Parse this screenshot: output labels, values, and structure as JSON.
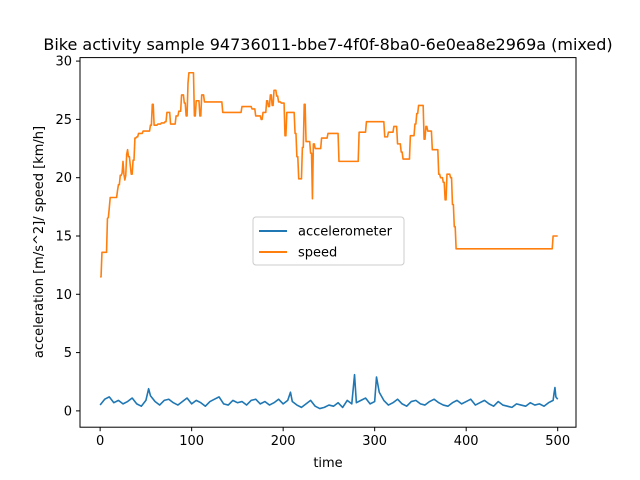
{
  "chart_data": {
    "type": "line",
    "title": "Bike activity sample 94736011-bbe7-4f0f-8ba0-6e0ea8e2969a (mixed)",
    "xlabel": "time",
    "ylabel": "acceleration [m/s^2]/ speed [km/h]",
    "xlim": [
      -22,
      520
    ],
    "ylim": [
      -1.4,
      30.3
    ],
    "xticks": [
      0,
      100,
      200,
      300,
      400,
      500
    ],
    "yticks": [
      0,
      5,
      10,
      15,
      20,
      25,
      30
    ],
    "grid": false,
    "legend_position": "center",
    "series": [
      {
        "name": "accelerometer",
        "color": "#1f77b4",
        "x": [
          0,
          5,
          10,
          15,
          20,
          25,
          30,
          35,
          40,
          45,
          50,
          53,
          55,
          60,
          65,
          70,
          75,
          80,
          85,
          90,
          95,
          100,
          105,
          110,
          115,
          120,
          125,
          130,
          135,
          140,
          145,
          150,
          155,
          160,
          165,
          170,
          175,
          180,
          185,
          190,
          195,
          200,
          205,
          208,
          210,
          215,
          220,
          225,
          230,
          235,
          240,
          245,
          250,
          255,
          260,
          265,
          270,
          275,
          278,
          280,
          285,
          290,
          295,
          300,
          302,
          305,
          310,
          315,
          320,
          325,
          330,
          335,
          340,
          345,
          350,
          355,
          360,
          365,
          370,
          375,
          380,
          385,
          390,
          395,
          400,
          405,
          410,
          415,
          420,
          425,
          430,
          435,
          440,
          445,
          450,
          455,
          460,
          465,
          470,
          475,
          480,
          485,
          490,
          495,
          496,
          497,
          498,
          500
        ],
        "y": [
          0.5,
          1.0,
          1.2,
          0.7,
          0.9,
          0.6,
          0.8,
          1.1,
          0.6,
          0.4,
          0.9,
          1.9,
          1.3,
          0.8,
          0.5,
          0.9,
          1.0,
          0.7,
          0.5,
          0.8,
          1.1,
          0.6,
          0.9,
          0.7,
          0.4,
          0.8,
          1.0,
          1.2,
          0.6,
          0.5,
          0.9,
          0.7,
          0.8,
          0.5,
          0.9,
          1.0,
          0.6,
          0.8,
          0.5,
          0.7,
          1.0,
          0.6,
          0.9,
          1.6,
          0.8,
          0.5,
          0.3,
          0.6,
          0.9,
          0.4,
          0.2,
          0.3,
          0.5,
          0.4,
          0.7,
          0.3,
          0.9,
          0.6,
          3.1,
          0.7,
          0.9,
          1.1,
          0.6,
          0.8,
          2.9,
          1.6,
          0.9,
          0.5,
          0.7,
          1.0,
          0.6,
          0.4,
          0.8,
          0.9,
          0.6,
          0.5,
          0.8,
          1.0,
          0.7,
          0.5,
          0.4,
          0.7,
          0.9,
          0.6,
          0.8,
          1.0,
          0.5,
          0.7,
          0.9,
          0.6,
          0.4,
          0.8,
          0.5,
          0.4,
          0.3,
          0.6,
          0.5,
          0.4,
          0.7,
          0.5,
          0.6,
          0.4,
          0.7,
          0.9,
          1.5,
          2.0,
          1.2,
          1.0
        ]
      },
      {
        "name": "speed",
        "color": "#ff7f0e",
        "x": [
          0,
          1,
          2,
          3,
          4,
          5,
          6,
          7,
          8,
          9,
          10,
          11,
          12,
          13,
          14,
          15,
          16,
          17,
          18,
          19,
          20,
          21,
          22,
          23,
          24,
          25,
          26,
          27,
          28,
          29,
          30,
          31,
          32,
          33,
          34,
          35,
          36,
          37,
          38,
          39,
          40,
          41,
          42,
          43,
          44,
          45,
          46,
          47,
          48,
          49,
          50,
          51,
          52,
          53,
          54,
          55,
          56,
          57,
          58,
          59,
          60,
          61,
          62,
          63,
          64,
          65,
          66,
          67,
          68,
          69,
          70,
          71,
          72,
          73,
          74,
          75,
          76,
          77,
          78,
          79,
          80,
          81,
          82,
          83,
          84,
          85,
          86,
          87,
          88,
          89,
          90,
          91,
          92,
          93,
          94,
          95,
          96,
          97,
          98,
          99,
          100,
          101,
          102,
          103,
          104,
          105,
          106,
          107,
          108,
          109,
          110,
          111,
          112,
          113,
          114,
          115,
          116,
          117,
          118,
          119,
          120,
          121,
          122,
          123,
          124,
          125,
          126,
          127,
          128,
          129,
          130,
          131,
          132,
          133,
          134,
          135,
          136,
          137,
          138,
          139,
          140,
          141,
          142,
          143,
          144,
          145,
          146,
          147,
          148,
          149,
          150,
          151,
          152,
          153,
          154,
          155,
          156,
          157,
          158,
          159,
          160,
          161,
          162,
          163,
          164,
          165,
          166,
          167,
          168,
          169,
          170,
          171,
          172,
          173,
          174,
          175,
          176,
          177,
          178,
          179,
          180,
          181,
          182,
          183,
          184,
          185,
          186,
          187,
          188,
          189,
          190,
          191,
          192,
          193,
          194,
          195,
          196,
          197,
          198,
          199,
          200,
          201,
          202,
          203,
          204,
          205,
          206,
          207,
          208,
          209,
          210,
          211,
          212,
          213,
          214,
          215,
          216,
          217,
          218,
          219,
          220,
          221,
          222,
          223,
          224,
          225,
          226,
          227,
          228,
          229,
          230,
          231,
          232,
          233,
          234,
          235,
          236,
          237,
          238,
          239,
          240,
          241,
          242,
          243,
          244,
          245,
          246,
          247,
          248,
          249,
          250,
          251,
          252,
          253,
          254,
          255,
          256,
          257,
          258,
          259,
          260,
          261,
          262,
          263,
          264,
          265,
          266,
          267,
          268,
          269,
          270,
          271,
          272,
          273,
          274,
          275,
          276,
          277,
          278,
          279,
          280,
          281,
          282,
          283,
          284,
          285,
          286,
          287,
          288,
          289,
          290,
          291,
          292,
          293,
          294,
          295,
          296,
          297,
          298,
          299,
          300,
          301,
          302,
          303,
          304,
          305,
          306,
          307,
          308,
          309,
          310,
          311,
          312,
          313,
          314,
          315,
          316,
          317,
          318,
          319,
          320,
          321,
          322,
          323,
          324,
          325,
          326,
          327,
          328,
          329,
          330,
          331,
          332,
          333,
          334,
          335,
          336,
          337,
          338,
          339,
          340,
          341,
          342,
          343,
          344,
          345,
          346,
          347,
          348,
          349,
          350,
          351,
          352,
          353,
          354,
          355,
          356,
          357,
          358,
          359,
          360,
          361,
          362,
          363,
          364,
          365,
          366,
          367,
          368,
          369,
          370,
          371,
          372,
          373,
          374,
          375,
          376,
          377,
          378,
          379,
          380,
          381,
          382,
          383,
          384,
          385,
          386,
          387,
          388,
          389,
          390,
          391,
          392,
          393,
          394,
          395,
          396,
          397,
          398,
          399,
          400,
          401,
          402,
          403,
          404,
          405,
          406,
          407,
          408,
          409,
          410,
          411,
          412,
          413,
          414,
          415,
          416,
          417,
          418,
          419,
          420,
          421,
          422,
          423,
          424,
          425,
          426,
          427,
          428,
          429,
          430,
          431,
          432,
          433,
          434,
          435,
          436,
          437,
          438,
          439,
          440,
          441,
          442,
          443,
          444,
          445,
          446,
          447,
          448,
          449,
          450,
          451,
          452,
          453,
          454,
          455,
          456,
          457,
          458,
          459,
          460,
          461,
          462,
          463,
          464,
          465,
          466,
          467,
          468,
          469,
          470,
          471,
          472,
          473,
          474,
          475,
          476,
          477,
          478,
          479,
          480,
          481,
          482,
          483,
          484,
          485,
          486,
          487,
          488,
          489,
          490,
          491,
          492,
          493,
          494,
          495,
          496,
          497,
          498,
          499,
          500
        ],
        "y": [
          11.5,
          11.5,
          13.6,
          13.6,
          13.6,
          13.6,
          13.6,
          13.6,
          16.5,
          16.6,
          17.4,
          18.3,
          18.3,
          18.3,
          18.3,
          18.3,
          18.3,
          18.3,
          18.3,
          18.9,
          19.4,
          19.4,
          20.2,
          20.2,
          20.4,
          21.4,
          20.3,
          19.8,
          20.2,
          22.0,
          22.4,
          21.8,
          21.8,
          21.0,
          20.3,
          20.3,
          21.5,
          21.5,
          23.4,
          23.4,
          23.5,
          23.5,
          23.8,
          23.8,
          23.8,
          23.8,
          23.8,
          24.0,
          24.0,
          24.0,
          24.0,
          24.0,
          24.0,
          24.0,
          24.0,
          24.5,
          24.5,
          26.3,
          26.3,
          24.5,
          24.5,
          24.5,
          24.5,
          24.6,
          24.6,
          24.6,
          24.6,
          24.7,
          24.7,
          24.7,
          24.7,
          24.8,
          24.8,
          25.6,
          25.6,
          25.6,
          25.6,
          24.6,
          24.6,
          24.6,
          24.6,
          24.6,
          24.6,
          25.3,
          25.3,
          25.3,
          25.7,
          25.7,
          25.7,
          27.1,
          27.1,
          27.1,
          26.4,
          26.4,
          25.3,
          25.3,
          28.1,
          29.0,
          29.0,
          29.0,
          29.0,
          29.0,
          29.0,
          25.3,
          25.3,
          26.6,
          26.6,
          26.6,
          26.6,
          25.3,
          25.3,
          27.1,
          27.1,
          27.1,
          26.5,
          26.5,
          26.5,
          26.5,
          26.5,
          26.5,
          26.5,
          26.5,
          26.5,
          26.5,
          26.5,
          26.5,
          26.5,
          26.5,
          26.5,
          26.5,
          26.5,
          26.5,
          26.5,
          26.5,
          25.6,
          25.6,
          25.6,
          25.6,
          25.6,
          25.6,
          25.6,
          25.6,
          25.6,
          25.6,
          25.6,
          25.6,
          25.6,
          25.6,
          25.6,
          25.6,
          25.6,
          25.6,
          25.6,
          25.6,
          25.6,
          26.1,
          26.1,
          26.1,
          26.1,
          26.1,
          26.1,
          26.1,
          26.1,
          26.1,
          26.1,
          26.1,
          25.9,
          25.9,
          25.9,
          25.9,
          25.3,
          25.3,
          25.3,
          25.3,
          25.3,
          25.3,
          25.0,
          25.0,
          25.6,
          25.6,
          25.6,
          25.6,
          26.6,
          26.6,
          26.1,
          26.1,
          27.1,
          27.1,
          26.2,
          26.2,
          27.5,
          27.5,
          27.5,
          27.0,
          27.0,
          26.5,
          26.5,
          26.5,
          26.4,
          26.4,
          26.4,
          26.4,
          23.6,
          23.6,
          25.6,
          25.6,
          25.6,
          25.6,
          25.6,
          25.6,
          25.6,
          25.6,
          25.6,
          23.8,
          23.8,
          21.8,
          21.8,
          19.9,
          19.9,
          19.9,
          19.9,
          22.6,
          22.6,
          26.3,
          26.3,
          23.1,
          23.1,
          23.1,
          23.1,
          23.1,
          22.1,
          22.1,
          18.2,
          22.9,
          22.9,
          22.5,
          22.5,
          22.5,
          22.5,
          22.5,
          22.5,
          22.5,
          23.4,
          23.4,
          23.4,
          23.4,
          23.4,
          23.4,
          23.4,
          23.8,
          23.8,
          23.8,
          23.8,
          23.8,
          23.8,
          23.8,
          23.8,
          23.8,
          23.8,
          23.8,
          23.8,
          21.4,
          21.4,
          21.4,
          21.4,
          21.4,
          21.4,
          21.4,
          21.4,
          21.4,
          21.4,
          21.4,
          21.4,
          21.4,
          21.4,
          21.4,
          21.4,
          21.4,
          21.4,
          21.4,
          21.4,
          21.4,
          21.4,
          23.9,
          23.9,
          23.9,
          23.9,
          23.9,
          23.9,
          23.9,
          23.9,
          24.8,
          24.8,
          24.8,
          24.8,
          24.8,
          24.8,
          24.8,
          24.8,
          24.8,
          24.8,
          24.8,
          24.8,
          24.8,
          24.8,
          24.8,
          24.8,
          24.8,
          24.8,
          24.8,
          24.8,
          23.5,
          23.5,
          23.5,
          23.5,
          23.9,
          23.9,
          23.9,
          23.9,
          23.9,
          23.9,
          24.4,
          24.4,
          24.4,
          24.4,
          22.9,
          22.9,
          22.9,
          22.9,
          22.2,
          22.2,
          21.6,
          21.6,
          21.6,
          21.6,
          21.6,
          21.6,
          21.6,
          21.6,
          23.6,
          23.6,
          23.6,
          23.6,
          23.6,
          24.6,
          24.6,
          25.5,
          25.5,
          26.2,
          26.2,
          26.2,
          26.2,
          26.2,
          26.2,
          23.3,
          23.3,
          24.4,
          24.4,
          24.0,
          24.0,
          24.0,
          24.0,
          24.0,
          22.4,
          22.4,
          22.4,
          22.4,
          22.4,
          22.4,
          22.4,
          20.3,
          20.3,
          20.0,
          20.0,
          20.0,
          19.6,
          19.6,
          18.1,
          18.1,
          20.3,
          20.3,
          20.3,
          20.3,
          20.0,
          20.0,
          17.7,
          17.7,
          15.8,
          15.8,
          13.9,
          13.9,
          13.9,
          13.9,
          13.9,
          13.9,
          13.9,
          13.9,
          13.9,
          13.9,
          13.9,
          13.9,
          13.9,
          13.9,
          13.9,
          13.9,
          13.9,
          13.9,
          13.9,
          13.9,
          13.9,
          13.9,
          13.9,
          13.9,
          13.9,
          13.9,
          13.9,
          13.9,
          13.9,
          13.9,
          13.9,
          13.9,
          13.9,
          13.9,
          13.9,
          13.9,
          13.9,
          13.9,
          13.9,
          13.9,
          13.9,
          13.9,
          13.9,
          13.9,
          13.9,
          13.9,
          13.9,
          13.9,
          13.9,
          13.9,
          13.9,
          13.9,
          13.9,
          13.9,
          13.9,
          13.9,
          13.9,
          13.9,
          13.9,
          13.9,
          13.9,
          13.9,
          13.9,
          13.9,
          13.9,
          13.9,
          13.9,
          13.9,
          13.9,
          13.9,
          13.9,
          13.9,
          13.9,
          13.9,
          13.9,
          13.9,
          13.9,
          13.9,
          13.9,
          13.9,
          13.9,
          13.9,
          13.9,
          13.9,
          13.9,
          13.9,
          13.9,
          13.9,
          13.9,
          13.9,
          13.9,
          13.9,
          13.9,
          13.9,
          13.9,
          13.9,
          13.9,
          13.9,
          13.9,
          13.9,
          13.9,
          13.9,
          13.9,
          13.9,
          13.9,
          13.9,
          15.0,
          15.0,
          15.0,
          15.0,
          15.0,
          15.0
        ]
      }
    ]
  }
}
